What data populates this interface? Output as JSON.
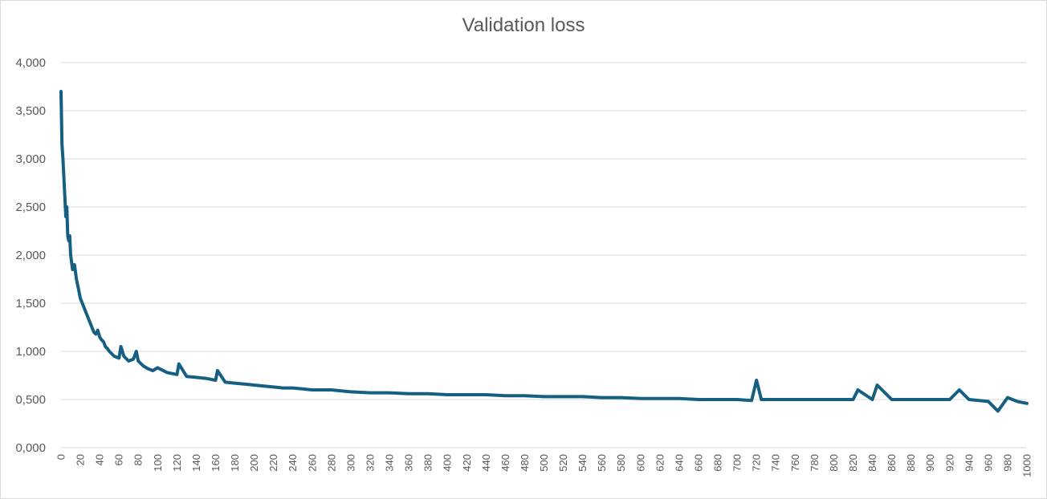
{
  "chart_data": {
    "type": "line",
    "title": "Validation loss",
    "xlabel": "",
    "ylabel": "",
    "xlim": [
      0,
      1000
    ],
    "ylim": [
      0,
      4
    ],
    "grid": true,
    "legend": "none",
    "y_ticks": [
      "0,000",
      "0,500",
      "1,000",
      "1,500",
      "2,000",
      "2,500",
      "3,000",
      "3,500",
      "4,000"
    ],
    "x_ticks": [
      "0",
      "20",
      "40",
      "60",
      "80",
      "100",
      "120",
      "140",
      "160",
      "180",
      "200",
      "220",
      "240",
      "260",
      "280",
      "300",
      "320",
      "340",
      "360",
      "380",
      "400",
      "420",
      "440",
      "460",
      "480",
      "500",
      "520",
      "540",
      "560",
      "580",
      "600",
      "620",
      "640",
      "660",
      "680",
      "700",
      "720",
      "740",
      "760",
      "780",
      "800",
      "820",
      "840",
      "860",
      "880",
      "900",
      "920",
      "940",
      "960",
      "980",
      "1000"
    ],
    "series": [
      {
        "color": "#156082",
        "x": [
          0,
          1,
          2,
          3,
          4,
          5,
          6,
          7,
          8,
          9,
          10,
          12,
          14,
          16,
          18,
          20,
          22,
          24,
          26,
          28,
          30,
          32,
          34,
          36,
          38,
          40,
          42,
          44,
          46,
          48,
          50,
          55,
          60,
          62,
          65,
          70,
          75,
          78,
          80,
          85,
          90,
          95,
          100,
          110,
          120,
          122,
          130,
          140,
          150,
          160,
          162,
          170,
          180,
          190,
          200,
          210,
          220,
          230,
          240,
          250,
          260,
          270,
          280,
          290,
          300,
          320,
          340,
          360,
          380,
          400,
          420,
          440,
          460,
          480,
          500,
          520,
          540,
          560,
          580,
          600,
          620,
          640,
          660,
          680,
          700,
          715,
          720,
          725,
          740,
          760,
          780,
          800,
          820,
          825,
          840,
          845,
          860,
          880,
          900,
          920,
          930,
          940,
          960,
          970,
          980,
          990,
          1000
        ],
        "y": [
          3.7,
          3.15,
          3.0,
          2.8,
          2.6,
          2.4,
          2.5,
          2.2,
          2.15,
          2.2,
          2.0,
          1.85,
          1.9,
          1.75,
          1.65,
          1.55,
          1.5,
          1.45,
          1.4,
          1.35,
          1.3,
          1.25,
          1.2,
          1.18,
          1.22,
          1.15,
          1.12,
          1.1,
          1.05,
          1.03,
          1.0,
          0.95,
          0.93,
          1.05,
          0.95,
          0.9,
          0.92,
          1.0,
          0.9,
          0.85,
          0.82,
          0.8,
          0.83,
          0.78,
          0.76,
          0.87,
          0.74,
          0.73,
          0.72,
          0.7,
          0.8,
          0.68,
          0.67,
          0.66,
          0.65,
          0.64,
          0.63,
          0.62,
          0.62,
          0.61,
          0.6,
          0.6,
          0.6,
          0.59,
          0.58,
          0.57,
          0.57,
          0.56,
          0.56,
          0.55,
          0.55,
          0.55,
          0.54,
          0.54,
          0.53,
          0.53,
          0.53,
          0.52,
          0.52,
          0.51,
          0.51,
          0.51,
          0.5,
          0.5,
          0.5,
          0.49,
          0.7,
          0.5,
          0.5,
          0.5,
          0.5,
          0.5,
          0.5,
          0.6,
          0.5,
          0.65,
          0.5,
          0.5,
          0.5,
          0.5,
          0.6,
          0.5,
          0.48,
          0.38,
          0.52,
          0.48,
          0.46
        ]
      }
    ]
  }
}
